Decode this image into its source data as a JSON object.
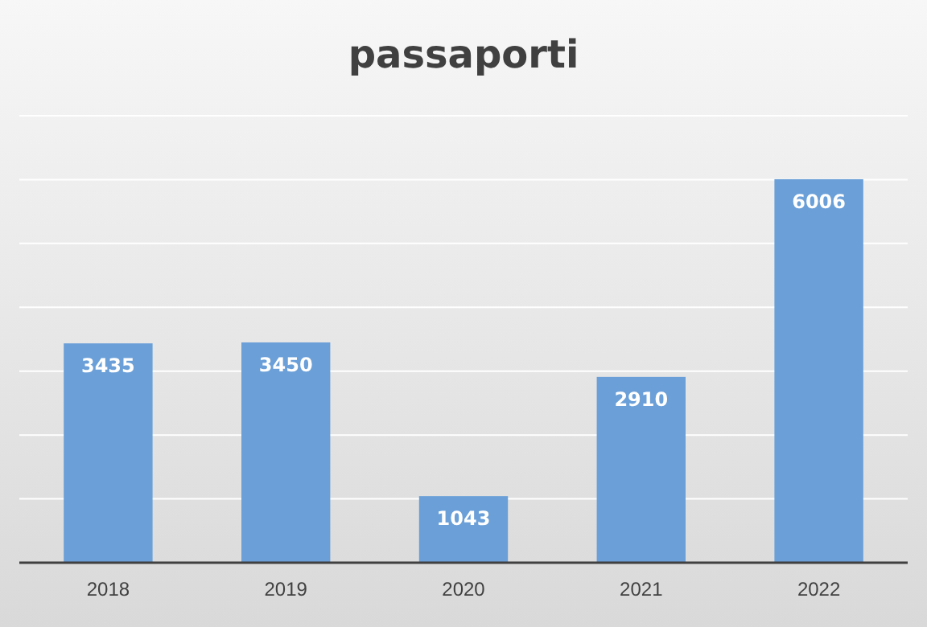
{
  "chart_data": {
    "type": "bar",
    "title": "passaporti",
    "categories": [
      "2018",
      "2019",
      "2020",
      "2021",
      "2022"
    ],
    "values": [
      3435,
      3450,
      1043,
      2910,
      6006
    ],
    "color": "#6a9fd8",
    "ylim": [
      0,
      7000
    ],
    "yticks": [
      {
        "value": 0,
        "label": null
      },
      {
        "value": 1000,
        "label": null
      },
      {
        "value": 2000,
        "label": null
      },
      {
        "value": 3000,
        "label": null
      },
      {
        "value": 4000,
        "label": null
      },
      {
        "value": 5000,
        "label": null
      },
      {
        "value": 6000,
        "label": null
      },
      {
        "value": 7000,
        "label": null
      }
    ],
    "tick_labels": "x",
    "grid": "y",
    "data_labels": true
  }
}
